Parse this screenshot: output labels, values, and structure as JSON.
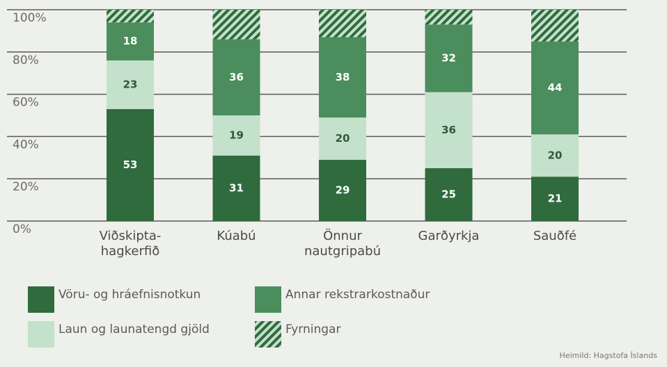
{
  "chart_data": {
    "type": "stacked_bar",
    "categories": [
      "Viðskipta-\nhagkerfið",
      "Kúabú",
      "Önnur\nnautgripabú",
      "Garðyrkja",
      "Sauðfé"
    ],
    "series": [
      {
        "name": "Vöru- og hráefnisnotkun",
        "color": "#2f6b3d",
        "values": [
          53,
          31,
          29,
          25,
          21
        ]
      },
      {
        "name": "Laun og launatengd gjöld",
        "color": "#c4e1cb",
        "values": [
          23,
          19,
          20,
          36,
          20
        ]
      },
      {
        "name": "Annar rekstrarkostnaður",
        "color": "#4b8d5d",
        "values": [
          18,
          36,
          38,
          32,
          44
        ]
      },
      {
        "name": "Fyrningar",
        "color": "#2f6b3d",
        "pattern": "hatch",
        "values": [
          6,
          14,
          13,
          7,
          15
        ]
      }
    ],
    "ylim": [
      0,
      100
    ],
    "yticks": [
      {
        "value": 0,
        "label": "0%"
      },
      {
        "value": 20,
        "label": "20%"
      },
      {
        "value": 40,
        "label": "40%"
      },
      {
        "value": 60,
        "label": "60%"
      },
      {
        "value": 80,
        "label": "80%"
      },
      {
        "value": 100,
        "label": "100%"
      }
    ],
    "grid": true,
    "source": "Heimild: Hagstofa Íslands"
  }
}
